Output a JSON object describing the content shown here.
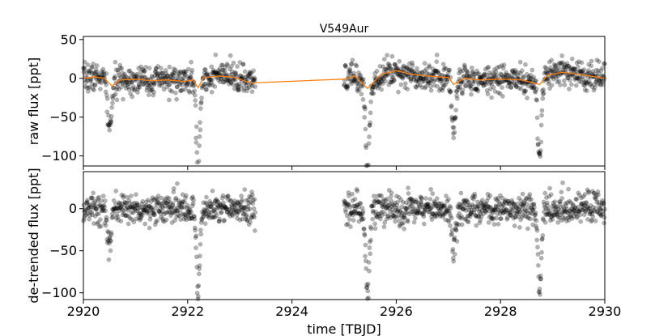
{
  "chart_data": [
    {
      "type": "scatter",
      "title": "V549Aur",
      "xlabel": "",
      "ylabel": "raw flux [ppt]",
      "xlim": [
        2920,
        2930
      ],
      "ylim": [
        -113,
        54
      ],
      "xticks": [
        2920,
        2922,
        2924,
        2926,
        2928,
        2930
      ],
      "yticks": [
        50,
        0,
        -50,
        -100
      ],
      "ytick_labels": [
        "50",
        "0",
        "−50",
        "−100"
      ],
      "grid": false,
      "point_color": "#000000",
      "point_alpha": 0.3,
      "segments": [
        [
          2920.0,
          2923.3
        ],
        [
          2925.0,
          2930.0
        ]
      ],
      "noise_std_ppt": 9,
      "eclipses": [
        {
          "time": 2920.5,
          "depth": 60
        },
        {
          "time": 2922.2,
          "depth": 105
        },
        {
          "time": 2925.45,
          "depth": 110
        },
        {
          "time": 2927.1,
          "depth": 60
        },
        {
          "time": 2928.75,
          "depth": 100
        }
      ],
      "trend": {
        "color": "#ff7f0e",
        "x": [
          2920.0,
          2920.2,
          2920.4,
          2920.55,
          2920.7,
          2921.0,
          2921.3,
          2921.6,
          2921.9,
          2922.1,
          2922.2,
          2922.3,
          2922.6,
          2922.9,
          2923.2,
          2925.0,
          2925.2,
          2925.45,
          2925.7,
          2926.0,
          2926.3,
          2926.6,
          2927.0,
          2927.1,
          2927.3,
          2927.6,
          2928.0,
          2928.4,
          2928.75,
          2928.9,
          2929.2,
          2929.6,
          2930.0
        ],
        "y": [
          0,
          2,
          0,
          -10,
          -2,
          -1,
          -3,
          -2,
          -4,
          -2,
          -12,
          1,
          3,
          1,
          -6,
          -1,
          3,
          -13,
          5,
          10,
          5,
          3,
          1,
          -8,
          0,
          -2,
          -1,
          -2,
          -8,
          4,
          8,
          4,
          0
        ]
      }
    },
    {
      "type": "scatter",
      "title": "",
      "xlabel": "time [TBJD]",
      "ylabel": "de-trended flux [ppt]",
      "xlim": [
        2920,
        2930
      ],
      "ylim": [
        -108,
        44
      ],
      "xticks": [
        2920,
        2922,
        2924,
        2926,
        2928,
        2930
      ],
      "xtick_labels": [
        "2920",
        "2922",
        "2924",
        "2926",
        "2928",
        "2930"
      ],
      "yticks": [
        0,
        -50,
        -100
      ],
      "ytick_labels": [
        "0",
        "−50",
        "−100"
      ],
      "grid": false,
      "point_color": "#000000",
      "point_alpha": 0.3,
      "segments": [
        [
          2920.0,
          2923.3
        ],
        [
          2925.0,
          2930.0
        ]
      ],
      "noise_std_ppt": 9,
      "eclipses": [
        {
          "time": 2920.5,
          "depth": 50
        },
        {
          "time": 2922.2,
          "depth": 95
        },
        {
          "time": 2925.45,
          "depth": 100
        },
        {
          "time": 2927.1,
          "depth": 50
        },
        {
          "time": 2928.75,
          "depth": 88
        }
      ]
    }
  ]
}
